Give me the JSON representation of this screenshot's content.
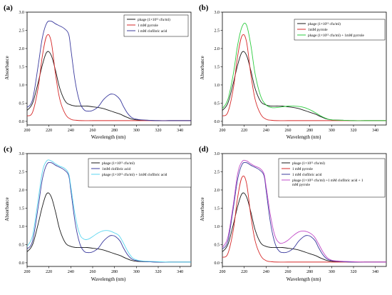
{
  "chart_data": [
    {
      "panel_label": "(a)",
      "type": "line",
      "xlabel": "Wavelength (nm)",
      "ylabel": "Absorbance",
      "xlim": [
        200,
        350
      ],
      "ylim": [
        -0.1,
        3.0
      ],
      "x_ticks": [
        "200",
        "220",
        "240",
        "260",
        "280",
        "300",
        "320",
        "340"
      ],
      "y_ticks": [
        "0.0",
        "0.5",
        "1.0",
        "1.5",
        "2.0",
        "2.5",
        "3.0"
      ],
      "legend_position": "top-right",
      "series": [
        {
          "name": "phage (1×10¹² cfu/ml)",
          "color": "#1a1a1a",
          "x": [
            200,
            205,
            210,
            214,
            218,
            222,
            226,
            230,
            235,
            240,
            245,
            250,
            255,
            260,
            265,
            270,
            275,
            280,
            285,
            290,
            295,
            300,
            310,
            320,
            330,
            340,
            350
          ],
          "y": [
            0.3,
            0.5,
            1.05,
            1.55,
            1.9,
            1.82,
            1.4,
            0.9,
            0.55,
            0.45,
            0.42,
            0.42,
            0.42,
            0.4,
            0.38,
            0.35,
            0.3,
            0.25,
            0.2,
            0.13,
            0.07,
            0.04,
            0.03,
            0.02,
            0.02,
            0.02,
            0.02
          ]
        },
        {
          "name": "1 mM pyrrole",
          "color": "#d62828",
          "x": [
            200,
            205,
            210,
            214,
            218,
            222,
            226,
            230,
            235,
            240,
            245,
            250,
            260,
            270,
            280,
            290,
            300,
            320,
            350
          ],
          "y": [
            0.15,
            0.25,
            0.9,
            1.8,
            2.35,
            2.2,
            1.3,
            0.6,
            0.2,
            0.06,
            0.03,
            0.02,
            0.02,
            0.02,
            0.02,
            0.02,
            0.02,
            0.02,
            0.02
          ]
        },
        {
          "name": "1 mM clofibric acid",
          "color": "#3b3b9e",
          "x": [
            200,
            205,
            210,
            214,
            218,
            222,
            226,
            230,
            234,
            238,
            240,
            244,
            248,
            252,
            256,
            260,
            265,
            270,
            275,
            278,
            281,
            285,
            288,
            292,
            296,
            300,
            305,
            310,
            320,
            330,
            340,
            350
          ],
          "y": [
            0.38,
            0.6,
            1.5,
            2.3,
            2.7,
            2.75,
            2.68,
            2.62,
            2.55,
            2.4,
            2.0,
            1.1,
            0.55,
            0.32,
            0.28,
            0.3,
            0.4,
            0.6,
            0.73,
            0.75,
            0.72,
            0.6,
            0.42,
            0.22,
            0.1,
            0.06,
            0.04,
            0.03,
            0.02,
            0.02,
            0.02,
            0.02
          ]
        }
      ]
    },
    {
      "panel_label": "(b)",
      "type": "line",
      "xlabel": "Wavelength (nm)",
      "ylabel": "Absorbance",
      "xlim": [
        200,
        350
      ],
      "ylim": [
        -0.1,
        3.0
      ],
      "x_ticks": [
        "200",
        "220",
        "240",
        "260",
        "280",
        "300",
        "320",
        "340"
      ],
      "y_ticks": [
        "0.0",
        "0.5",
        "1.0",
        "1.5",
        "2.0",
        "2.5",
        "3.0"
      ],
      "legend_position": "top-right",
      "series": [
        {
          "name": "phage (1×10¹² cfu/ml)",
          "color": "#1a1a1a",
          "x": [
            200,
            205,
            210,
            214,
            218,
            222,
            226,
            230,
            235,
            240,
            245,
            250,
            255,
            260,
            265,
            270,
            275,
            280,
            285,
            290,
            295,
            300,
            310,
            320,
            330,
            340,
            350
          ],
          "y": [
            0.3,
            0.5,
            1.05,
            1.55,
            1.9,
            1.82,
            1.4,
            0.9,
            0.55,
            0.45,
            0.42,
            0.42,
            0.42,
            0.4,
            0.38,
            0.35,
            0.3,
            0.25,
            0.2,
            0.13,
            0.07,
            0.04,
            0.03,
            0.02,
            0.02,
            0.02,
            0.02
          ]
        },
        {
          "name": "1mM pyrrole",
          "color": "#d62828",
          "x": [
            200,
            205,
            210,
            214,
            218,
            222,
            226,
            230,
            235,
            240,
            245,
            250,
            260,
            270,
            280,
            290,
            300,
            320,
            350
          ],
          "y": [
            0.15,
            0.25,
            0.9,
            1.8,
            2.35,
            2.2,
            1.3,
            0.6,
            0.2,
            0.06,
            0.03,
            0.02,
            0.02,
            0.02,
            0.02,
            0.02,
            0.02,
            0.02,
            0.02
          ]
        },
        {
          "name": "phage (1×10¹² cfu/ml) + 1mM pyrrole",
          "color": "#2ecc40",
          "x": [
            200,
            205,
            210,
            214,
            218,
            222,
            226,
            230,
            235,
            240,
            245,
            250,
            255,
            260,
            265,
            270,
            275,
            280,
            285,
            290,
            295,
            300,
            310,
            320,
            330,
            340,
            350
          ],
          "y": [
            0.35,
            0.6,
            1.3,
            2.1,
            2.6,
            2.65,
            2.1,
            1.3,
            0.7,
            0.45,
            0.38,
            0.38,
            0.4,
            0.42,
            0.42,
            0.41,
            0.38,
            0.32,
            0.24,
            0.15,
            0.08,
            0.04,
            0.03,
            0.02,
            0.02,
            0.02,
            0.02
          ]
        }
      ]
    },
    {
      "panel_label": "(c)",
      "type": "line",
      "xlabel": "Wavelength (nm)",
      "ylabel": "Absorbance",
      "xlim": [
        200,
        350
      ],
      "ylim": [
        -0.1,
        3.0
      ],
      "x_ticks": [
        "200",
        "220",
        "240",
        "260",
        "280",
        "300",
        "320",
        "340"
      ],
      "y_ticks": [
        "0.0",
        "0.5",
        "1.0",
        "1.5",
        "2.0",
        "2.5",
        "3.0"
      ],
      "legend_position": "top-right",
      "series": [
        {
          "name": "phage (1×10¹² cfu/ml)",
          "color": "#1a1a1a",
          "x": [
            200,
            205,
            210,
            214,
            218,
            222,
            226,
            230,
            235,
            240,
            245,
            250,
            255,
            260,
            265,
            270,
            275,
            280,
            285,
            290,
            295,
            300,
            310,
            320,
            330,
            340,
            350
          ],
          "y": [
            0.3,
            0.5,
            1.05,
            1.55,
            1.9,
            1.82,
            1.4,
            0.9,
            0.55,
            0.45,
            0.42,
            0.42,
            0.42,
            0.4,
            0.38,
            0.35,
            0.3,
            0.25,
            0.2,
            0.13,
            0.07,
            0.04,
            0.03,
            0.02,
            0.02,
            0.02,
            0.02
          ]
        },
        {
          "name": "1mM clofibric acid",
          "color": "#3b3b9e",
          "x": [
            200,
            205,
            210,
            214,
            218,
            222,
            226,
            230,
            234,
            238,
            240,
            244,
            248,
            252,
            256,
            260,
            265,
            270,
            275,
            278,
            281,
            285,
            288,
            292,
            296,
            300,
            305,
            310,
            320,
            330,
            340,
            350
          ],
          "y": [
            0.38,
            0.6,
            1.5,
            2.3,
            2.7,
            2.75,
            2.68,
            2.62,
            2.55,
            2.4,
            2.0,
            1.1,
            0.55,
            0.32,
            0.28,
            0.3,
            0.4,
            0.6,
            0.73,
            0.75,
            0.72,
            0.6,
            0.42,
            0.22,
            0.1,
            0.06,
            0.04,
            0.03,
            0.02,
            0.02,
            0.02,
            0.02
          ]
        },
        {
          "name": "phage (1×10¹² cfu/ml) + 1mM clofibric acid",
          "color": "#5bd6f0",
          "x": [
            200,
            205,
            210,
            214,
            218,
            222,
            226,
            230,
            234,
            238,
            240,
            244,
            248,
            252,
            256,
            260,
            265,
            270,
            275,
            280,
            284,
            288,
            292,
            296,
            300,
            305,
            310,
            320,
            330,
            340,
            350
          ],
          "y": [
            0.45,
            0.75,
            1.7,
            2.5,
            2.8,
            2.8,
            2.72,
            2.65,
            2.6,
            2.45,
            2.1,
            1.3,
            0.8,
            0.65,
            0.65,
            0.72,
            0.82,
            0.88,
            0.88,
            0.82,
            0.75,
            0.55,
            0.32,
            0.15,
            0.08,
            0.05,
            0.04,
            0.03,
            0.02,
            0.02,
            0.02
          ]
        }
      ]
    },
    {
      "panel_label": "(d)",
      "type": "line",
      "xlabel": "Wavelength (nm)",
      "ylabel": "Absorbance",
      "xlim": [
        200,
        350
      ],
      "ylim": [
        -0.1,
        3.0
      ],
      "x_ticks": [
        "200",
        "220",
        "240",
        "260",
        "280",
        "300",
        "320",
        "340"
      ],
      "y_ticks": [
        "0.0",
        "0.5",
        "1.0",
        "1.5",
        "2.0",
        "2.5",
        "3.0"
      ],
      "legend_position": "top-right",
      "series": [
        {
          "name": "phage (1×10¹² cfu/ml)",
          "color": "#1a1a1a",
          "x": [
            200,
            205,
            210,
            214,
            218,
            222,
            226,
            230,
            235,
            240,
            245,
            250,
            255,
            260,
            265,
            270,
            275,
            280,
            285,
            290,
            295,
            300,
            310,
            320,
            330,
            340,
            350
          ],
          "y": [
            0.3,
            0.5,
            1.05,
            1.55,
            1.9,
            1.82,
            1.4,
            0.9,
            0.55,
            0.45,
            0.42,
            0.42,
            0.42,
            0.4,
            0.38,
            0.35,
            0.3,
            0.25,
            0.2,
            0.13,
            0.07,
            0.04,
            0.03,
            0.02,
            0.02,
            0.02,
            0.02
          ]
        },
        {
          "name": "1 mM pyrrole",
          "color": "#d62828",
          "x": [
            200,
            205,
            210,
            214,
            218,
            222,
            226,
            230,
            235,
            240,
            245,
            250,
            260,
            270,
            280,
            290,
            300,
            320,
            350
          ],
          "y": [
            0.15,
            0.25,
            0.9,
            1.8,
            2.35,
            2.2,
            1.3,
            0.6,
            0.2,
            0.06,
            0.03,
            0.02,
            0.02,
            0.02,
            0.02,
            0.02,
            0.02,
            0.02,
            0.02
          ]
        },
        {
          "name": "1 mM clofibric acid",
          "color": "#3b3b9e",
          "x": [
            200,
            205,
            210,
            214,
            218,
            222,
            226,
            230,
            234,
            238,
            240,
            244,
            248,
            252,
            256,
            260,
            265,
            270,
            275,
            278,
            281,
            285,
            288,
            292,
            296,
            300,
            305,
            310,
            320,
            330,
            340,
            350
          ],
          "y": [
            0.38,
            0.6,
            1.5,
            2.3,
            2.7,
            2.75,
            2.68,
            2.62,
            2.55,
            2.4,
            2.0,
            1.1,
            0.55,
            0.32,
            0.28,
            0.3,
            0.4,
            0.6,
            0.73,
            0.75,
            0.72,
            0.6,
            0.42,
            0.22,
            0.1,
            0.06,
            0.04,
            0.03,
            0.02,
            0.02,
            0.02,
            0.02
          ]
        },
        {
          "name": "phage (1×10¹² cfu/ml) +1 mM clofibric acid + 1 mM pyrrole",
          "color": "#c24cc8",
          "x": [
            200,
            205,
            210,
            214,
            218,
            222,
            226,
            230,
            234,
            238,
            240,
            244,
            248,
            252,
            256,
            260,
            265,
            270,
            275,
            280,
            284,
            288,
            292,
            296,
            300,
            305,
            310,
            320,
            330,
            340,
            350
          ],
          "y": [
            0.42,
            0.7,
            1.6,
            2.45,
            2.78,
            2.8,
            2.72,
            2.65,
            2.6,
            2.45,
            2.1,
            1.3,
            0.75,
            0.55,
            0.55,
            0.62,
            0.75,
            0.85,
            0.87,
            0.82,
            0.72,
            0.52,
            0.3,
            0.14,
            0.07,
            0.05,
            0.04,
            0.03,
            0.02,
            0.02,
            0.02
          ]
        }
      ]
    }
  ]
}
